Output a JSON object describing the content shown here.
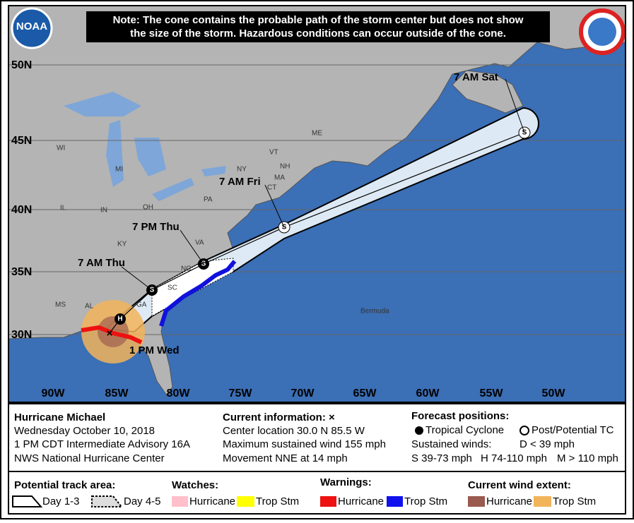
{
  "note": [
    "Note: The cone contains the probable path of the storm center but does not show",
    "the size of the storm. Hazardous conditions can occur outside of the cone."
  ],
  "logo": "NOAA",
  "map": {
    "latitude_labels": [
      "50N",
      "45N",
      "40N",
      "35N",
      "30N"
    ],
    "longitude_labels": [
      "90W",
      "85W",
      "80W",
      "75W",
      "70W",
      "65W",
      "60W",
      "55W",
      "50W"
    ],
    "place_labels": [
      "WI",
      "MI",
      "IL",
      "IN",
      "OH",
      "ME",
      "VT",
      "NH",
      "NY",
      "MA",
      "CT",
      "PA",
      "KY",
      "VA",
      "NC",
      "SC",
      "GA",
      "AL",
      "MS",
      "Bermuda"
    ],
    "forecast_labels": [
      "1 PM Wed",
      "7 AM Thu",
      "7 PM Thu",
      "7 AM Fri",
      "7 AM Sat"
    ],
    "markers": [
      "H",
      "S",
      "S",
      "S",
      "S"
    ]
  },
  "info": {
    "storm": {
      "title": "Hurricane Michael",
      "lines": [
        "Wednesday October 10, 2018",
        "1 PM CDT Intermediate Advisory 16A",
        "NWS National Hurricane Center"
      ]
    },
    "current": {
      "title": "Current information: ×",
      "lines": [
        "Center location 30.0 N 85.5 W",
        "Maximum sustained wind 155 mph",
        "Movement NNE at 14 mph"
      ]
    },
    "forecast": {
      "title": "Forecast positions:",
      "tropical": "Tropical Cyclone",
      "post": "Post/Potential TC",
      "winds": "Sustained winds:",
      "d": "D < 39 mph",
      "s": "S 39-73 mph",
      "h": "H 74-110 mph",
      "m": "M > 110 mph"
    }
  },
  "legend": {
    "track": {
      "title": "Potential track area:",
      "day13": "Day 1-3",
      "day45": "Day 4-5"
    },
    "watches": {
      "title": "Watches:",
      "hurricane": "Hurricane",
      "tropical": "Trop Stm"
    },
    "warnings": {
      "title": "Warnings:",
      "hurricane": "Hurricane",
      "tropical": "Trop Stm"
    },
    "wind": {
      "title": "Current wind extent:",
      "hurricane": "Hurricane",
      "tropical": "Trop Stm"
    }
  }
}
